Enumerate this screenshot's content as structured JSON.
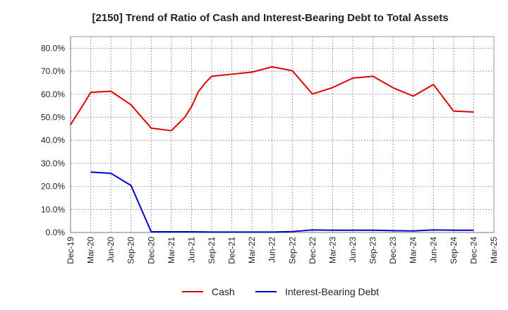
{
  "chart_data": {
    "type": "line",
    "title": "[2150]  Trend of Ratio of Cash and Interest-Bearing Debt to Total Assets",
    "xlabel": "",
    "ylabel": "",
    "ylim": [
      0,
      85
    ],
    "y_ticks": [
      0,
      10,
      20,
      30,
      40,
      50,
      60,
      70,
      80
    ],
    "y_tick_labels": [
      "0.0%",
      "10.0%",
      "20.0%",
      "30.0%",
      "40.0%",
      "50.0%",
      "60.0%",
      "70.0%",
      "80.0%"
    ],
    "x_range": [
      0,
      63
    ],
    "x_ticks": [
      0,
      3,
      6,
      9,
      12,
      15,
      18,
      21,
      24,
      27,
      30,
      33,
      36,
      39,
      42,
      45,
      48,
      51,
      54,
      57,
      60,
      63
    ],
    "x_tick_labels": [
      "Dec-19",
      "Mar-20",
      "Jun-20",
      "Sep-20",
      "Dec-20",
      "Mar-21",
      "Jun-21",
      "Sep-21",
      "Dec-21",
      "Mar-22",
      "Jun-22",
      "Sep-22",
      "Dec-22",
      "Mar-23",
      "Jun-23",
      "Sep-23",
      "Dec-23",
      "Mar-24",
      "Jun-24",
      "Sep-24",
      "Dec-24",
      "Mar-25"
    ],
    "grid": true,
    "legend_position": "bottom-center",
    "series": [
      {
        "name": "Cash",
        "color": "#e00000",
        "x": [
          0,
          2,
          3,
          6,
          9,
          12,
          15,
          17,
          18,
          19,
          20,
          21,
          24,
          27,
          30,
          33,
          36,
          39,
          42,
          45,
          48,
          51,
          54,
          57,
          60
        ],
        "values": [
          46.8,
          56.0,
          60.8,
          61.3,
          55.4,
          45.3,
          44.2,
          50.0,
          54.6,
          61.0,
          64.8,
          67.8,
          68.7,
          69.6,
          71.9,
          70.2,
          60.1,
          62.9,
          67.0,
          67.8,
          62.8,
          59.2,
          64.2,
          52.7,
          52.3
        ]
      },
      {
        "name": "Interest-Bearing Debt",
        "color": "#0000d0",
        "x": [
          3,
          6,
          9,
          12,
          15,
          18,
          21,
          24,
          27,
          30,
          33,
          36,
          39,
          42,
          45,
          48,
          51,
          54,
          57,
          60
        ],
        "values": [
          26.2,
          25.7,
          20.4,
          0.3,
          0.3,
          0.3,
          0.2,
          0.2,
          0.2,
          0.2,
          0.4,
          1.1,
          1.0,
          1.0,
          1.0,
          0.8,
          0.7,
          1.1,
          1.0,
          1.0
        ]
      }
    ]
  }
}
